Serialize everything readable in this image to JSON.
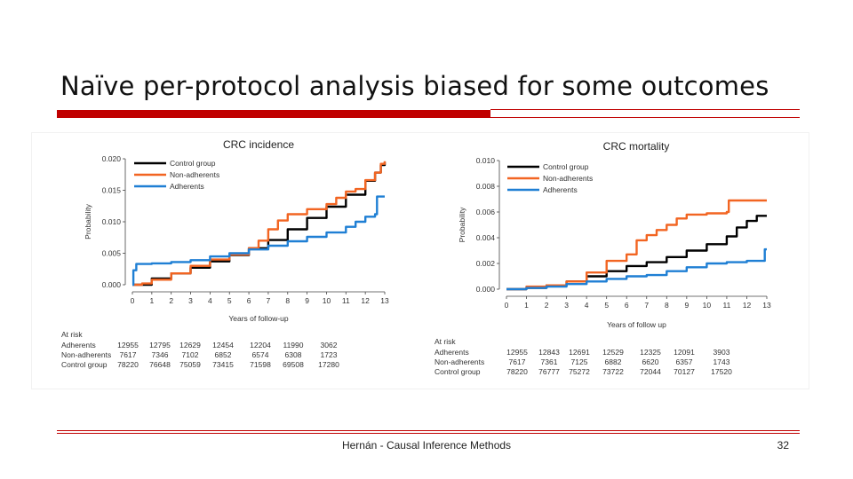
{
  "slide": {
    "title": "Naïve per-protocol analysis biased for some outcomes",
    "footer": "Hernán - Causal Inference Methods",
    "page_number": "32"
  },
  "colors": {
    "accent": "#c00000",
    "control": "#000000",
    "nonadherent": "#f26522",
    "adherent": "#1f7fd4"
  },
  "chart_data": [
    {
      "type": "line",
      "title": "CRC incidence",
      "xlabel": "Years of follow-up",
      "ylabel": "Probability",
      "xlim": [
        0,
        13
      ],
      "ylim": [
        0,
        0.02
      ],
      "xticks": [
        "0",
        "1",
        "2",
        "3",
        "4",
        "5",
        "6",
        "7",
        "8",
        "9",
        "10",
        "11",
        "12",
        "13"
      ],
      "yticks": [
        "0.000",
        "0.005",
        "0.010",
        "0.015",
        "0.020"
      ],
      "legend": "top-left",
      "series": [
        {
          "name": "Control group",
          "color": "#000000",
          "x": [
            0,
            1,
            2,
            3,
            4,
            5,
            6,
            7,
            8,
            9,
            10,
            11,
            12,
            12.5,
            12.8,
            13
          ],
          "y": [
            0,
            0.001,
            0.0018,
            0.0027,
            0.0037,
            0.0047,
            0.0058,
            0.0071,
            0.0088,
            0.0106,
            0.0124,
            0.0143,
            0.0165,
            0.0178,
            0.019,
            0.0195
          ]
        },
        {
          "name": "Non-adherents",
          "color": "#f26522",
          "x": [
            0,
            0.5,
            1,
            2,
            3,
            4,
            5,
            6,
            6.5,
            7,
            7.5,
            8,
            9,
            10,
            10.5,
            11,
            11.5,
            12,
            12.5,
            12.8,
            13
          ],
          "y": [
            0,
            0.0002,
            0.0008,
            0.0018,
            0.003,
            0.004,
            0.0048,
            0.0058,
            0.007,
            0.0088,
            0.0102,
            0.0112,
            0.012,
            0.0128,
            0.0138,
            0.0148,
            0.0152,
            0.0166,
            0.0178,
            0.0192,
            0.0196
          ]
        },
        {
          "name": "Adherents",
          "color": "#1f7fd4",
          "x": [
            0,
            0.05,
            0.2,
            1,
            2,
            3,
            4,
            5,
            6,
            7,
            8,
            9,
            10,
            11,
            11.5,
            12,
            12.5,
            12.6,
            13
          ],
          "y": [
            0,
            0.0023,
            0.0033,
            0.0034,
            0.0036,
            0.0039,
            0.0045,
            0.005,
            0.0056,
            0.0062,
            0.0069,
            0.0076,
            0.0083,
            0.0092,
            0.01,
            0.0108,
            0.0112,
            0.014,
            0.014
          ]
        }
      ],
      "at_risk": {
        "heading": "At risk",
        "rows": [
          {
            "label": "Adherents",
            "values": [
              "12955",
              "12795",
              "12629",
              "12454",
              "12204",
              "11990",
              "3062"
            ]
          },
          {
            "label": "Non-adherents",
            "values": [
              "7617",
              "7346",
              "7102",
              "6852",
              "6574",
              "6308",
              "1723"
            ]
          },
          {
            "label": "Control group",
            "values": [
              "78220",
              "76648",
              "75059",
              "73415",
              "71598",
              "69508",
              "17280"
            ]
          }
        ]
      }
    },
    {
      "type": "line",
      "title": "CRC mortality",
      "xlabel": "Years of follow up",
      "ylabel": "Probability",
      "xlim": [
        0,
        13
      ],
      "ylim": [
        0,
        0.01
      ],
      "xticks": [
        "0",
        "1",
        "2",
        "3",
        "4",
        "5",
        "6",
        "7",
        "8",
        "9",
        "10",
        "11",
        "12",
        "13"
      ],
      "yticks": [
        "0.000",
        "0.002",
        "0.004",
        "0.006",
        "0.008",
        "0.010"
      ],
      "legend": "top-left",
      "series": [
        {
          "name": "Control group",
          "color": "#000000",
          "x": [
            0,
            1,
            2,
            3,
            4,
            5,
            6,
            7,
            8,
            9,
            10,
            11,
            11.5,
            12,
            12.5,
            13
          ],
          "y": [
            0,
            0.0001,
            0.0003,
            0.0006,
            0.001,
            0.0014,
            0.0018,
            0.0021,
            0.0025,
            0.003,
            0.0035,
            0.0041,
            0.0048,
            0.0053,
            0.0057,
            0.0057
          ]
        },
        {
          "name": "Non-adherents",
          "color": "#f26522",
          "x": [
            0,
            1,
            2,
            3,
            4,
            5,
            6,
            6.5,
            7,
            7.5,
            8,
            8.5,
            9,
            10,
            11,
            11.1,
            11.5,
            12,
            12.5,
            13
          ],
          "y": [
            0,
            0.0002,
            0.0003,
            0.0006,
            0.0013,
            0.0022,
            0.0027,
            0.0038,
            0.0042,
            0.0046,
            0.005,
            0.0055,
            0.0058,
            0.0059,
            0.006,
            0.0069,
            0.0069,
            0.0069,
            0.0069,
            0.0069
          ]
        },
        {
          "name": "Adherents",
          "color": "#1f7fd4",
          "x": [
            0,
            1,
            2,
            3,
            4,
            5,
            6,
            7,
            8,
            9,
            10,
            11,
            12,
            12.8,
            12.9,
            13
          ],
          "y": [
            0,
            0.0001,
            0.0002,
            0.0004,
            0.0006,
            0.0008,
            0.001,
            0.0011,
            0.0014,
            0.0017,
            0.002,
            0.0021,
            0.0022,
            0.0022,
            0.0031,
            0.0031
          ]
        }
      ],
      "at_risk": {
        "heading": "At risk",
        "rows": [
          {
            "label": "Adherents",
            "values": [
              "12955",
              "12843",
              "12691",
              "12529",
              "12325",
              "12091",
              "3903"
            ]
          },
          {
            "label": "Non-adherents",
            "values": [
              "7617",
              "7361",
              "7125",
              "6882",
              "6620",
              "6357",
              "1743"
            ]
          },
          {
            "label": "Control group",
            "values": [
              "78220",
              "76777",
              "75272",
              "73722",
              "72044",
              "70127",
              "17520"
            ]
          }
        ]
      }
    }
  ]
}
